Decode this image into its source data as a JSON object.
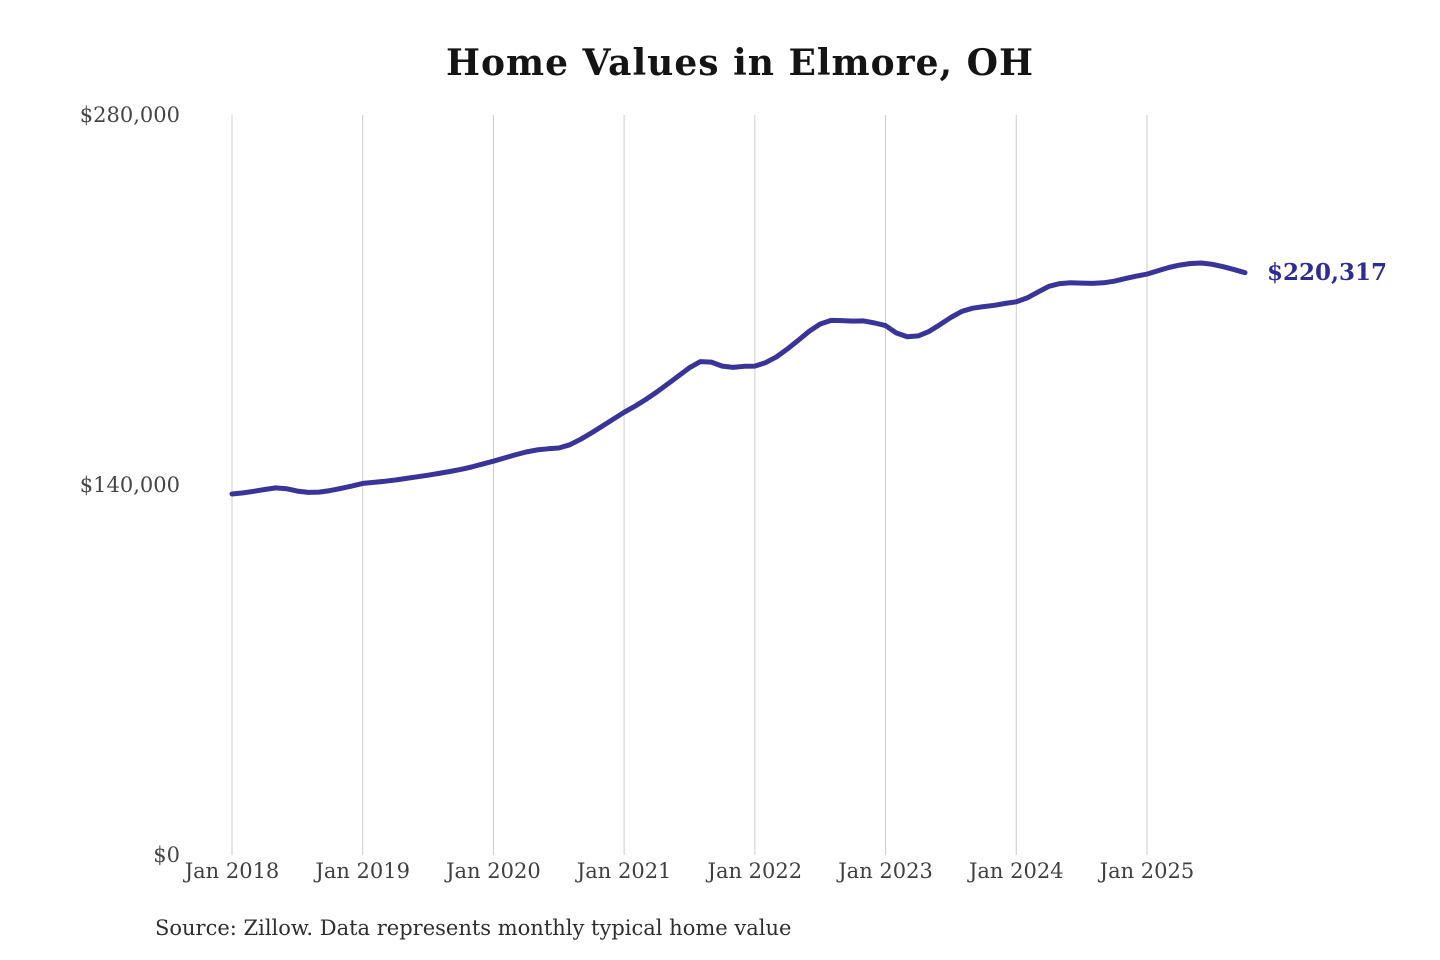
{
  "page": {
    "background": "#ffffff"
  },
  "colors": {
    "line": "#3b3498",
    "end_label": "#2e2b92",
    "gridline": "#cccccc",
    "tick_text": "#3f3f3f",
    "title_text": "#141414"
  },
  "chart_data": {
    "type": "line",
    "title": "Home Values in Elmore, OH",
    "source_note": "Source: Zillow. Data represents monthly typical home value",
    "series_name": "Monthly typical home value",
    "frequency": "monthly",
    "x_start": "Jan 2018",
    "x_end": "Oct 2025",
    "x_tick_labels": [
      "Jan 2018",
      "Jan 2019",
      "Jan 2020",
      "Jan 2021",
      "Jan 2022",
      "Jan 2023",
      "Jan 2024",
      "Jan 2025"
    ],
    "y_ticks": [
      {
        "label": "$0",
        "value": 0
      },
      {
        "label": "$140,000",
        "value": 140000
      },
      {
        "label": "$280,000",
        "value": 280000
      }
    ],
    "ylim": [
      0,
      280000
    ],
    "grid": "vertical-only",
    "legend": "none",
    "end_label": "$220,317",
    "end_value": 220317,
    "line_color": "#3b3498",
    "values": [
      136600,
      137000,
      137600,
      138300,
      138900,
      138600,
      137700,
      137200,
      137300,
      137900,
      138700,
      139600,
      140600,
      141000,
      141400,
      141900,
      142500,
      143100,
      143700,
      144400,
      145100,
      145900,
      146800,
      147900,
      149000,
      150200,
      151400,
      152500,
      153300,
      153700,
      154000,
      155200,
      157300,
      159700,
      162300,
      164900,
      167500,
      169800,
      172400,
      175200,
      178200,
      181300,
      184400,
      186700,
      186500,
      185000,
      184500,
      184900,
      185000,
      186300,
      188500,
      191500,
      194800,
      198200,
      200900,
      202300,
      202200,
      202000,
      202100,
      201300,
      200300,
      197500,
      196100,
      196400,
      198100,
      200700,
      203400,
      205700,
      206900,
      207500,
      208000,
      208700,
      209300,
      210800,
      213000,
      215200,
      216200,
      216500,
      216400,
      216300,
      216500,
      217100,
      218100,
      219000,
      219800,
      221100,
      222300,
      223200,
      223800,
      224000,
      223500,
      222600,
      221500,
      220317
    ]
  }
}
